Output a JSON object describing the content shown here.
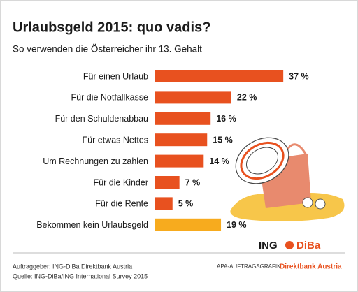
{
  "chart_data": {
    "type": "bar",
    "orientation": "horizontal",
    "title": "Urlaubsgeld 2015: quo vadis?",
    "subtitle": "So verwenden die Österreicher ihr 13. Gehalt",
    "categories": [
      "Für einen Urlaub",
      "Für die Notfallkasse",
      "Für den Schuldenabbau",
      "Für etwas Nettes",
      "Um Rechnungen zu zahlen",
      "Für die Kinder",
      "Für die Rente",
      "Bekommen kein Urlaubsgeld"
    ],
    "values": [
      37,
      22,
      16,
      15,
      14,
      7,
      5,
      19
    ],
    "value_labels": [
      "37 %",
      "22 %",
      "16 %",
      "15 %",
      "14 %",
      "7 %",
      "5 %",
      "19 %"
    ],
    "colors": [
      "#e8511f",
      "#e8511f",
      "#e8511f",
      "#e8511f",
      "#e8511f",
      "#e8511f",
      "#e8511f",
      "#f7ab1e"
    ]
  },
  "footer": {
    "client": "Auftraggeber: ING-DiBa Direktbank Austria",
    "source": "Quelle: ING-DiBa/ING International Survey 2015",
    "agency": "APA-AUFTRAGSGRAFIK",
    "logo_left": "ING",
    "logo_right": "DiBa",
    "logo_sub": "Direktbank Austria"
  }
}
